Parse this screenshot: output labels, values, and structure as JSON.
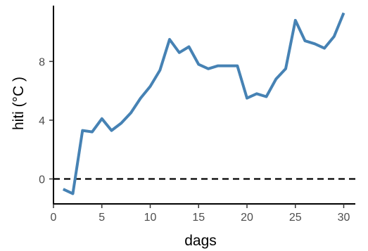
{
  "chart_data": {
    "type": "line",
    "title": "",
    "xlabel": "dags",
    "ylabel": "hiti (°C )",
    "xlim": [
      0,
      31.2
    ],
    "ylim": [
      -1.7,
      11.8
    ],
    "xticks": [
      0,
      5,
      10,
      15,
      20,
      25,
      30
    ],
    "yticks": [
      0,
      4,
      8
    ],
    "grid": false,
    "legend": "none",
    "reference_line": {
      "y": 0,
      "style": "dashed",
      "color": "#000000"
    },
    "series": [
      {
        "color": "#4682B4",
        "x": [
          1,
          2,
          3,
          4,
          5,
          6,
          7,
          8,
          9,
          10,
          11,
          12,
          13,
          14,
          15,
          16,
          17,
          18,
          19,
          20,
          21,
          22,
          23,
          24,
          25,
          26,
          27,
          28,
          29,
          30
        ],
        "y": [
          -0.7,
          -1.0,
          3.3,
          3.2,
          4.1,
          3.3,
          3.8,
          4.5,
          5.5,
          6.3,
          7.4,
          9.5,
          8.6,
          9.0,
          7.8,
          7.5,
          7.7,
          7.7,
          7.7,
          5.5,
          5.8,
          5.6,
          6.8,
          7.5,
          10.8,
          9.4,
          9.2,
          8.9,
          9.7,
          11.3
        ]
      }
    ]
  }
}
